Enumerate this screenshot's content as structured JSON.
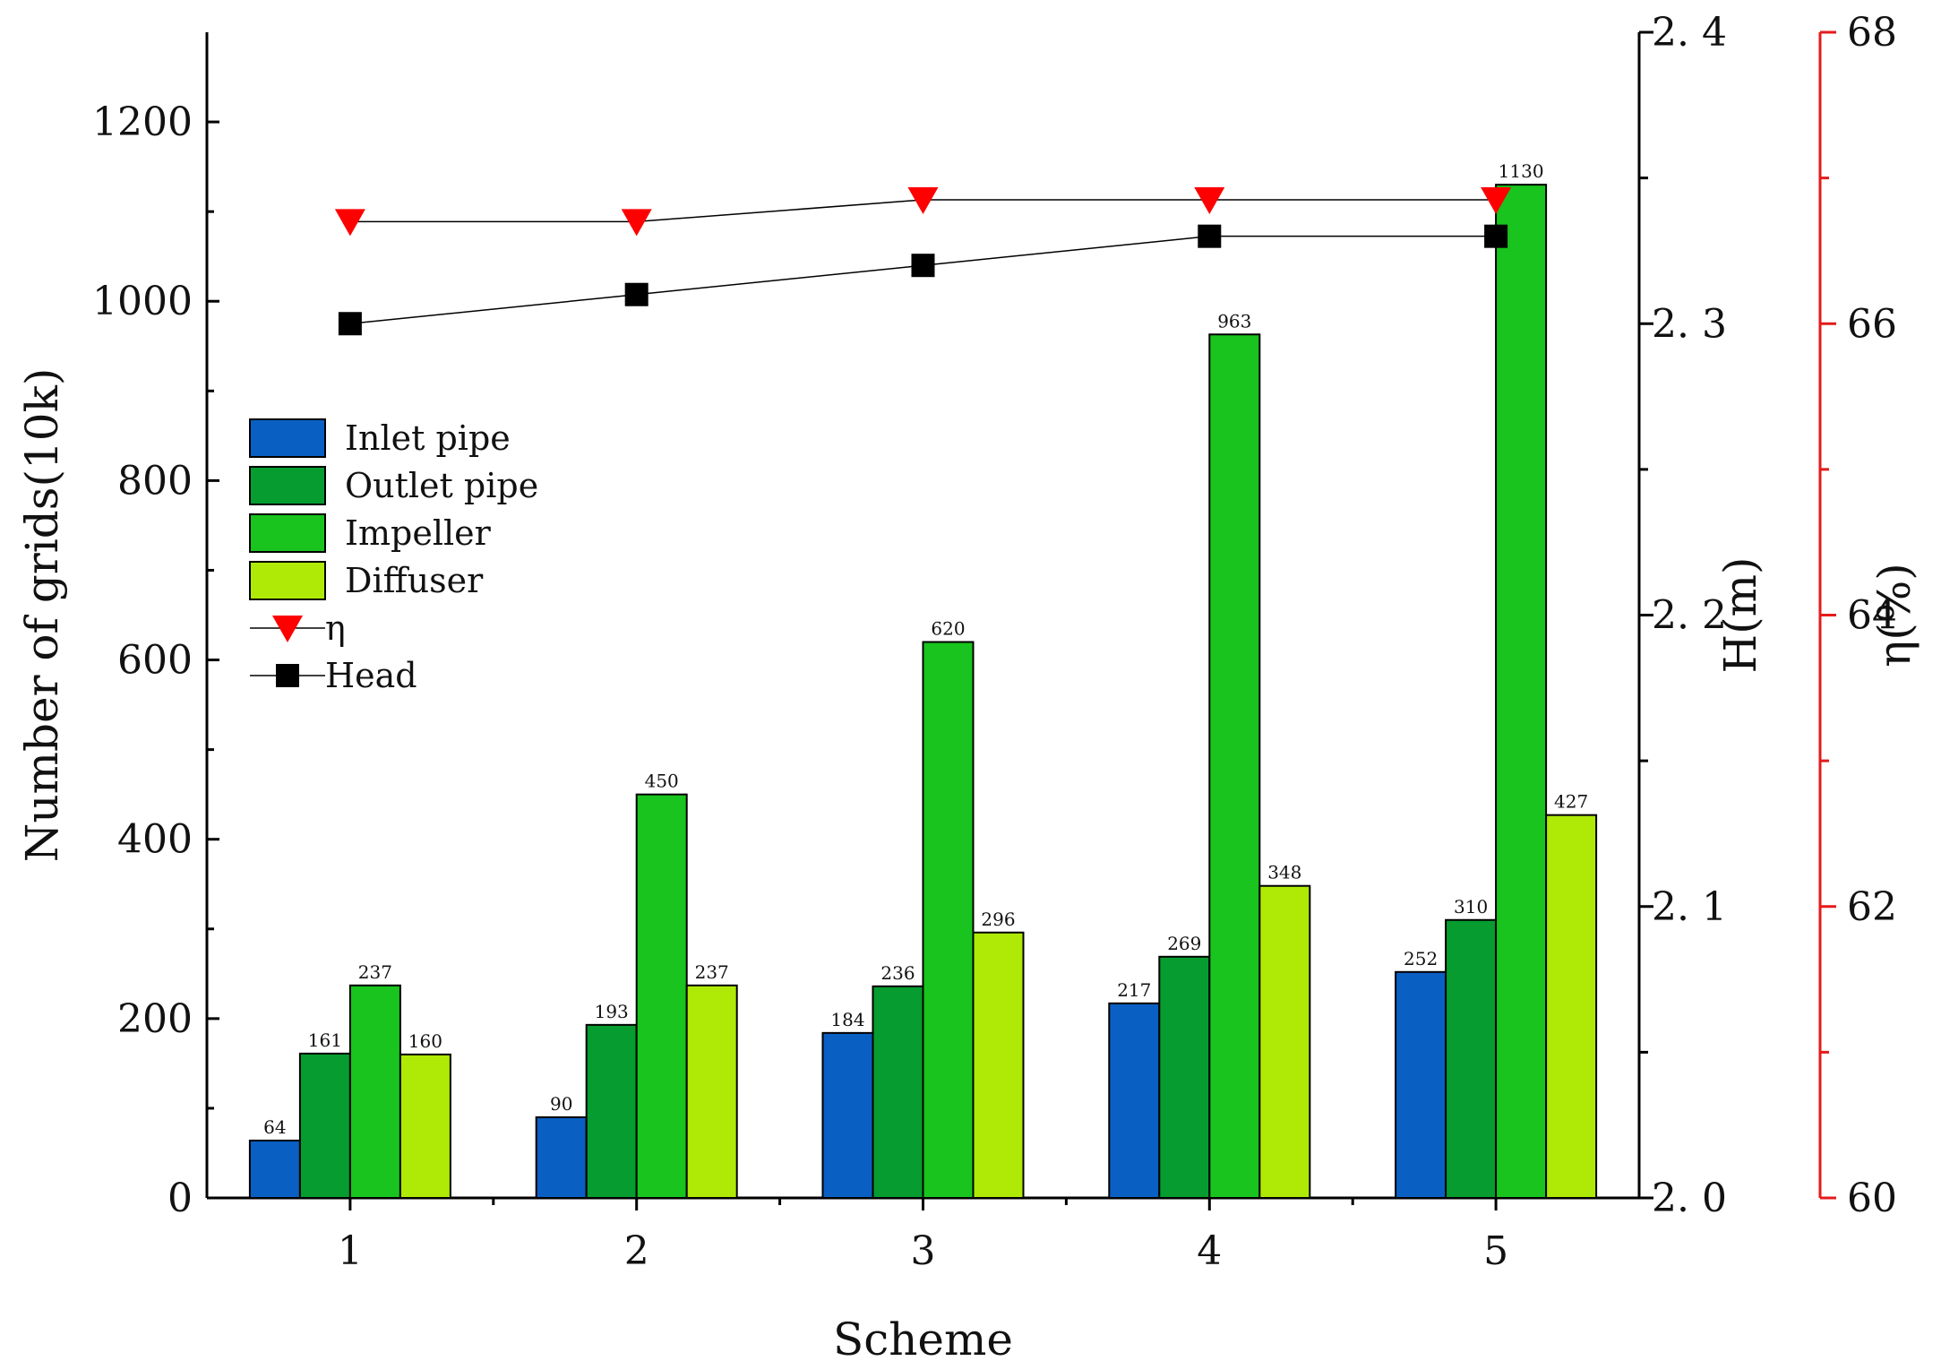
{
  "chart_data": {
    "type": "bar",
    "xlabel": "Scheme",
    "ylabel": "Number of grids(10k)",
    "categories": [
      "1",
      "2",
      "3",
      "4",
      "5"
    ],
    "ylim": [
      0,
      1300
    ],
    "yticks": [
      0,
      200,
      400,
      600,
      800,
      1000,
      1200
    ],
    "series": [
      {
        "name": "Inlet pipe",
        "color": "#0a5fc3",
        "values": [
          64,
          90,
          184,
          217,
          252
        ]
      },
      {
        "name": "Outlet pipe",
        "color": "#069c2f",
        "values": [
          161,
          193,
          236,
          269,
          310
        ]
      },
      {
        "name": "Impeller",
        "color": "#18c41d",
        "values": [
          237,
          450,
          620,
          963,
          1130
        ]
      },
      {
        "name": "Diffuser",
        "color": "#aeea05",
        "values": [
          160,
          237,
          296,
          348,
          427
        ]
      }
    ],
    "bar_labels": [
      [
        "64",
        "90",
        "184",
        "217",
        "252"
      ],
      [
        "161",
        "193",
        "236",
        "269",
        "310"
      ],
      [
        "237",
        "450",
        "620",
        "963",
        "1130"
      ],
      [
        "160",
        "237",
        "296",
        "348",
        "427"
      ]
    ],
    "lines": [
      {
        "name": "η",
        "axis": "eta",
        "marker": "triangle-down",
        "color": "#ff0000",
        "values": [
          66.7,
          66.7,
          66.85,
          66.85,
          66.85
        ]
      },
      {
        "name": "Head",
        "axis": "head",
        "marker": "square",
        "color": "#000000",
        "values": [
          2.3,
          2.31,
          2.32,
          2.33,
          2.33
        ]
      }
    ],
    "head_axis": {
      "label": "H(m)",
      "range": [
        2.0,
        2.4
      ],
      "ticks": [
        2.0,
        2.1,
        2.2,
        2.3,
        2.4
      ],
      "tick_labels": [
        "2. 0",
        "2. 1",
        "2. 2",
        "2. 3",
        "2. 4"
      ],
      "color": "#000000"
    },
    "eta_axis": {
      "label": "η(%)",
      "range": [
        60,
        68
      ],
      "ticks": [
        60,
        62,
        64,
        66,
        68
      ],
      "tick_labels": [
        "60",
        "62",
        "64",
        "66",
        "68"
      ],
      "color": "#e41b1b"
    },
    "legend": {
      "position": "left-middle",
      "entries": [
        "Inlet pipe",
        "Outlet pipe",
        "Impeller",
        "Diffuser",
        "η",
        "Head"
      ]
    }
  }
}
